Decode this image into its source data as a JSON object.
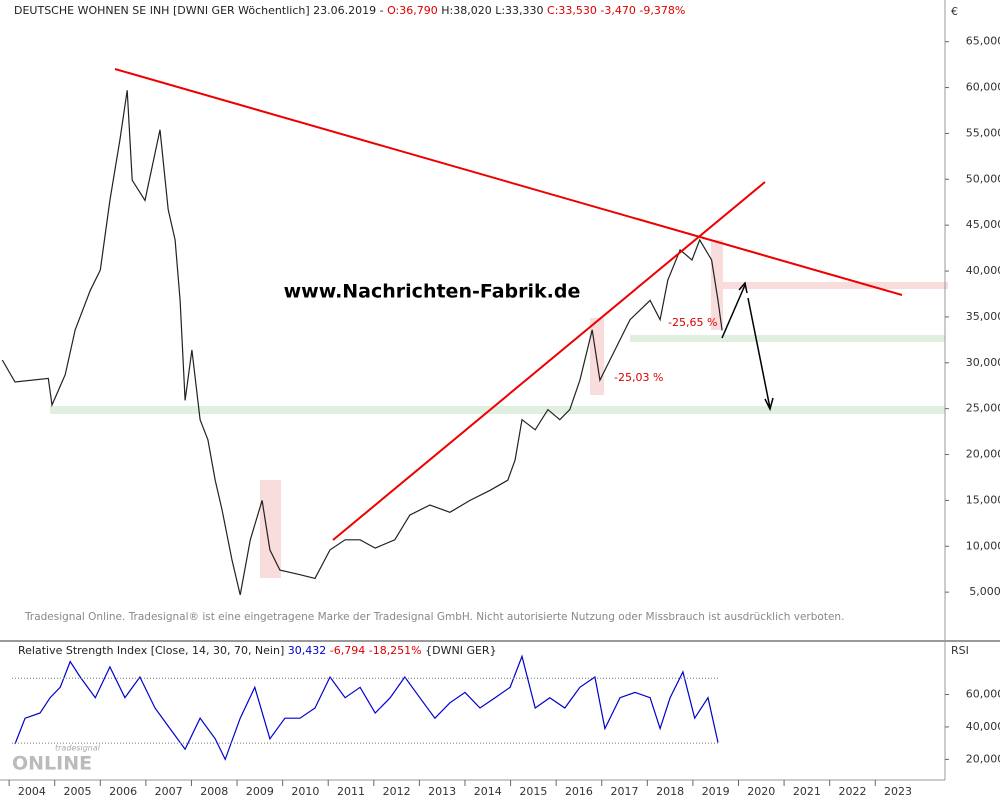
{
  "chart_data": [
    {
      "type": "line",
      "title_parts": [
        "DEUTSCHE WOHNEN SE INH [DWNI GER  Wöchentlich] 23.06.2019 -",
        "O:36,790",
        "H:38,020 L:33,330",
        "C:33,530 -3,470 -9,378%"
      ],
      "y_unit": "€",
      "watermark": "www.Nachrichten-Fabrik.de",
      "annotations": [
        "-25,65 %",
        "-25,03 %"
      ],
      "copyright": "Tradesignal Online. Tradesignal® ist eine eingetragene Marke der Tradesignal GmbH. Nicht autorisierte Nutzung oder Missbrauch ist ausdrücklich verboten.",
      "color": "#222222",
      "x": [
        2003.85,
        2004.13,
        2004.86,
        2004.94,
        2005.23,
        2005.45,
        2005.78,
        2006.0,
        2006.21,
        2006.43,
        2006.59,
        2006.7,
        2006.98,
        2007.31,
        2007.49,
        2007.64,
        2007.75,
        2007.86,
        2008.01,
        2008.19,
        2008.36,
        2008.52,
        2008.67,
        2008.89,
        2009.07,
        2009.29,
        2009.55,
        2009.72,
        2009.94,
        2010.38,
        2010.71,
        2011.04,
        2011.37,
        2011.7,
        2012.03,
        2012.46,
        2012.79,
        2013.23,
        2013.67,
        2014.11,
        2014.55,
        2014.94,
        2015.1,
        2015.25,
        2015.54,
        2015.82,
        2016.08,
        2016.3,
        2016.52,
        2016.79,
        2016.96,
        2017.07,
        2017.29,
        2017.62,
        2018.06,
        2018.28,
        2018.45,
        2018.72,
        2018.98,
        2019.15,
        2019.41,
        2019.55,
        2019.64
      ],
      "values": [
        30.3,
        27.9,
        28.3,
        25.4,
        28.7,
        33.6,
        37.9,
        40.1,
        47.7,
        54.3,
        59.7,
        49.9,
        47.7,
        55.4,
        46.7,
        43.4,
        36.8,
        25.9,
        31.4,
        23.8,
        21.6,
        17.2,
        14.0,
        8.5,
        4.7,
        10.7,
        15.0,
        9.6,
        7.4,
        6.9,
        6.5,
        9.6,
        10.7,
        10.7,
        9.8,
        10.7,
        13.4,
        14.5,
        13.7,
        15.0,
        16.1,
        17.2,
        19.4,
        23.8,
        22.7,
        24.9,
        23.8,
        24.9,
        28.1,
        33.6,
        28.1,
        29.2,
        31.4,
        34.7,
        36.8,
        34.7,
        39.0,
        42.3,
        41.2,
        43.4,
        41.2,
        36.8,
        33.53
      ],
      "xlim": [
        2003.8,
        2024.53
      ],
      "xticks": [
        2004,
        2005,
        2006,
        2007,
        2008,
        2009,
        2010,
        2011,
        2012,
        2013,
        2014,
        2015,
        2016,
        2017,
        2018,
        2019,
        2020,
        2021,
        2022,
        2023
      ],
      "ylim": [
        0,
        69
      ],
      "yticks": [
        {
          "value": 5,
          "label": "5,000"
        },
        {
          "value": 10,
          "label": "10,000"
        },
        {
          "value": 15,
          "label": "15,000"
        },
        {
          "value": 20,
          "label": "20,000"
        },
        {
          "value": 25,
          "label": "25,000"
        },
        {
          "value": 30,
          "label": "30,000"
        },
        {
          "value": 35,
          "label": "35,000"
        },
        {
          "value": 40,
          "label": "40,000"
        },
        {
          "value": 45,
          "label": "45,000"
        },
        {
          "value": 50,
          "label": "50,000"
        },
        {
          "value": 55,
          "label": "55,000"
        },
        {
          "value": 60,
          "label": "60,000"
        },
        {
          "value": 65,
          "label": "65,000"
        }
      ]
    },
    {
      "type": "line",
      "title_parts": [
        "Relative Strength Index [Close, 14, 30, 70, Nein]",
        "30,432",
        "-6,794 -18,251%",
        "{DWNI GER}"
      ],
      "y_unit": "RSI",
      "logo": [
        "tradesignal",
        "ONLINE"
      ],
      "color": "#0000cc",
      "x": [
        2004.13,
        2004.35,
        2004.68,
        2004.9,
        2005.12,
        2005.34,
        2005.56,
        2005.89,
        2006.21,
        2006.54,
        2006.87,
        2007.2,
        2007.53,
        2007.86,
        2008.19,
        2008.52,
        2008.74,
        2009.07,
        2009.39,
        2009.72,
        2010.05,
        2010.38,
        2010.71,
        2011.04,
        2011.37,
        2011.7,
        2012.03,
        2012.36,
        2012.68,
        2013.01,
        2013.34,
        2013.67,
        2014.0,
        2014.33,
        2014.66,
        2014.99,
        2015.25,
        2015.54,
        2015.86,
        2016.19,
        2016.52,
        2016.85,
        2017.07,
        2017.4,
        2017.73,
        2018.06,
        2018.28,
        2018.5,
        2018.78,
        2019.04,
        2019.33,
        2019.55
      ],
      "values": [
        29.5,
        45.4,
        48.6,
        58,
        64.4,
        80.3,
        70.8,
        58,
        77,
        58,
        70.8,
        51.7,
        39,
        26.3,
        45.4,
        32.7,
        20,
        45.4,
        64.4,
        32.7,
        45.4,
        45.4,
        51.7,
        70.8,
        58,
        64.4,
        48.6,
        58,
        70.8,
        58,
        45.4,
        54.9,
        61.3,
        51.7,
        58,
        64.4,
        83.5,
        51.7,
        58,
        51.7,
        64.4,
        70.8,
        39,
        58,
        61.3,
        58,
        39,
        58,
        74,
        45.4,
        58,
        30.43
      ],
      "xlim": [
        2003.8,
        2024.53
      ],
      "ylim": [
        7.3,
        90.5
      ],
      "yticks": [
        {
          "value": 20,
          "label": "20,000"
        },
        {
          "value": 40,
          "label": "40,000"
        },
        {
          "value": 60,
          "label": "60,000"
        }
      ],
      "hlines": [
        70,
        30
      ]
    }
  ]
}
